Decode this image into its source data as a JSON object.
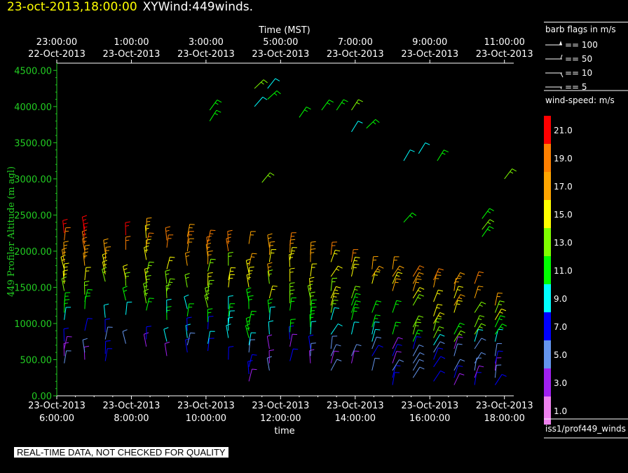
{
  "header": {
    "timestamp": "23-oct-2013,18:00:00",
    "product": "XYWind:449winds."
  },
  "footer_note": "REAL-TIME DATA, NOT CHECKED FOR QUALITY",
  "legend": {
    "barb_title": "barb flags in m/s",
    "barbs": [
      {
        "label": "== 100"
      },
      {
        "label": "== 50"
      },
      {
        "label": "== 10"
      },
      {
        "label": "== 5"
      }
    ],
    "speed_title": "wind-speed: m/s",
    "colorbar": [
      {
        "label": "21.0",
        "color": "#ff0000"
      },
      {
        "label": "19.0",
        "color": "#ff8000"
      },
      {
        "label": "17.0",
        "color": "#ffa500"
      },
      {
        "label": "15.0",
        "color": "#ffff00"
      },
      {
        "label": "13.0",
        "color": "#80ff00"
      },
      {
        "label": "11.0",
        "color": "#00ff00"
      },
      {
        "label": "9.0",
        "color": "#00ffff"
      },
      {
        "label": "7.0",
        "color": "#0000ff"
      },
      {
        "label": "5.0",
        "color": "#6495ed"
      },
      {
        "label": "3.0",
        "color": "#a020f0"
      },
      {
        "label": "1.0",
        "color": "#ee82ee"
      }
    ],
    "source": "iss1/prof449_winds"
  },
  "chart_data": {
    "type": "scatter",
    "title": "",
    "xlabel": "time",
    "x2label": "Time (MST)",
    "ylabel": "449 Profiler Altitude (m agl)",
    "ylim": [
      0,
      4600
    ],
    "xlim_hours_utc": [
      6,
      18.25
    ],
    "x_ticks_bottom": [
      {
        "date": "23-Oct-2013",
        "time": "6:00:00"
      },
      {
        "date": "23-Oct-2013",
        "time": "8:00:00"
      },
      {
        "date": "23-Oct-2013",
        "time": "10:00:00"
      },
      {
        "date": "23-Oct-2013",
        "time": "12:00:00"
      },
      {
        "date": "23-Oct-2013",
        "time": "14:00:00"
      },
      {
        "date": "23-Oct-2013",
        "time": "16:00:00"
      },
      {
        "date": "23-Oct-2013",
        "time": "18:00:00"
      }
    ],
    "x_ticks_top": [
      {
        "time": "23:00:00",
        "date": "22-Oct-2013"
      },
      {
        "time": "1:00:00",
        "date": "23-Oct-2013"
      },
      {
        "time": "3:00:00",
        "date": "23-Oct-2013"
      },
      {
        "time": "5:00:00",
        "date": "23-Oct-2013"
      },
      {
        "time": "7:00:00",
        "date": "23-Oct-2013"
      },
      {
        "time": "9:00:00",
        "date": "23-Oct-2013"
      },
      {
        "time": "11:00:00",
        "date": "23-Oct-2013"
      }
    ],
    "y_ticks": [
      "0.00",
      "500.00",
      "1000.00",
      "1500.00",
      "2000.00",
      "2500.00",
      "3000.00",
      "3500.00",
      "4000.00",
      "4500.00"
    ],
    "y_tick_values": [
      0,
      500,
      1000,
      1500,
      2000,
      2500,
      3000,
      3500,
      4000,
      4500
    ],
    "grid": false,
    "barb_columns_hours": [
      6.2,
      6.75,
      7.3,
      7.85,
      8.4,
      8.95,
      9.5,
      10.05,
      10.6,
      11.15,
      11.7,
      12.25,
      12.8,
      13.35,
      13.9,
      14.45,
      15.0,
      15.55,
      16.1,
      16.65,
      17.2,
      17.75
    ],
    "barb_min_altitude": [
      350,
      500,
      480,
      520,
      480,
      350,
      600,
      520,
      500,
      200,
      350,
      480,
      350,
      350,
      450,
      350,
      150,
      150,
      200,
      150,
      150,
      150
    ],
    "barb_max_altitude": [
      2300,
      2300,
      2300,
      2300,
      2300,
      2200,
      2200,
      2200,
      2100,
      2100,
      2100,
      2100,
      2000,
      2000,
      2000,
      1950,
      1900,
      1800,
      1600,
      1600,
      1600,
      1600
    ],
    "upper_barbs": [
      {
        "hour": 10.1,
        "alt": 3950
      },
      {
        "hour": 10.1,
        "alt": 3800
      },
      {
        "hour": 11.3,
        "alt": 4250
      },
      {
        "hour": 11.3,
        "alt": 4000
      },
      {
        "hour": 11.65,
        "alt": 4250
      },
      {
        "hour": 11.65,
        "alt": 4100
      },
      {
        "hour": 11.5,
        "alt": 2950
      },
      {
        "hour": 12.5,
        "alt": 3850
      },
      {
        "hour": 13.1,
        "alt": 3950
      },
      {
        "hour": 13.5,
        "alt": 3950
      },
      {
        "hour": 13.9,
        "alt": 3950
      },
      {
        "hour": 13.9,
        "alt": 3650
      },
      {
        "hour": 14.3,
        "alt": 3700
      },
      {
        "hour": 15.3,
        "alt": 3250
      },
      {
        "hour": 15.7,
        "alt": 3350
      },
      {
        "hour": 16.2,
        "alt": 3250
      },
      {
        "hour": 15.3,
        "alt": 2400
      },
      {
        "hour": 17.4,
        "alt": 2200
      },
      {
        "hour": 17.4,
        "alt": 2300
      },
      {
        "hour": 17.4,
        "alt": 2450
      },
      {
        "hour": 18.0,
        "alt": 3000
      }
    ]
  }
}
